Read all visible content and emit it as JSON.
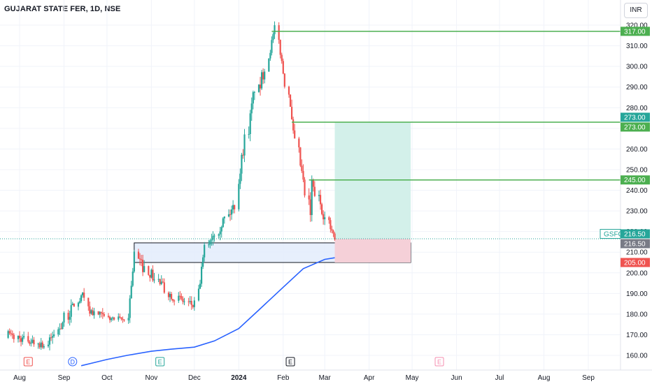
{
  "header": {
    "title": "GUJARAT STATE FER, 1D, NSE",
    "currency": "INR"
  },
  "chart_data": {
    "type": "candlestick",
    "symbol": "GSFC",
    "price_axis": {
      "ylim": [
        153,
        324
      ],
      "ticks": [
        160,
        170,
        180,
        190,
        200,
        210,
        220,
        230,
        240,
        250,
        260,
        270,
        280,
        290,
        300,
        310,
        320
      ],
      "tick_labels": [
        "160.00",
        "170.00",
        "180.00",
        "190.00",
        "200.00",
        "210.00",
        "220.00",
        "230.00",
        "240.00",
        "250.00",
        "260.00",
        "270.00",
        "280.00",
        "290.00",
        "300.00",
        "310.00",
        "320.00"
      ]
    },
    "time_axis": {
      "labels": [
        {
          "text": "Aug",
          "date": "2023-08-01",
          "bold": false
        },
        {
          "text": "Sep",
          "date": "2023-09-01",
          "bold": false
        },
        {
          "text": "Oct",
          "date": "2023-10-01",
          "bold": false
        },
        {
          "text": "Nov",
          "date": "2023-11-01",
          "bold": false
        },
        {
          "text": "Dec",
          "date": "2023-12-01",
          "bold": false
        },
        {
          "text": "2024",
          "date": "2024-01-01",
          "bold": true
        },
        {
          "text": "Feb",
          "date": "2024-02-01",
          "bold": false
        },
        {
          "text": "Mar",
          "date": "2024-03-01",
          "bold": false
        },
        {
          "text": "Apr",
          "date": "2024-04-01",
          "bold": false
        },
        {
          "text": "May",
          "date": "2024-05-01",
          "bold": false
        },
        {
          "text": "Jun",
          "date": "2024-06-01",
          "bold": false
        },
        {
          "text": "Jul",
          "date": "2024-07-01",
          "bold": false
        },
        {
          "text": "Aug",
          "date": "2024-08-01",
          "bold": false
        },
        {
          "text": "Sep",
          "date": "2024-09-01",
          "bold": false
        }
      ]
    },
    "colors": {
      "up": "#26a69a",
      "down": "#ef5350",
      "ma": "#2962ff",
      "level": "#4caf50",
      "zone_fill": "#e3ecfb",
      "target_fill": "#d3f0ea",
      "stop_fill": "#f5d0d8",
      "stop_label": "#ef5350",
      "last_price": "#26a69a",
      "crosshair_label": "#787b86"
    },
    "candles_segments": [
      {
        "from": "2023-07-24",
        "to": "2023-08-18",
        "start": 170,
        "end": 165,
        "wiggle": 3
      },
      {
        "from": "2023-08-19",
        "to": "2023-09-10",
        "start": 165,
        "end": 185,
        "wiggle": 4
      },
      {
        "from": "2023-09-11",
        "to": "2023-09-16",
        "start": 185,
        "end": 190,
        "wiggle": 3
      },
      {
        "from": "2023-09-17",
        "to": "2023-09-30",
        "start": 182,
        "end": 178,
        "wiggle": 3
      },
      {
        "from": "2023-10-01",
        "to": "2023-10-14",
        "start": 178,
        "end": 177,
        "wiggle": 2
      },
      {
        "from": "2023-10-15",
        "to": "2023-10-22",
        "start": 180,
        "end": 209,
        "wiggle": 4
      },
      {
        "from": "2023-10-23",
        "to": "2023-11-10",
        "start": 206,
        "end": 192,
        "wiggle": 4
      },
      {
        "from": "2023-11-11",
        "to": "2023-11-30",
        "start": 190,
        "end": 184,
        "wiggle": 3
      },
      {
        "from": "2023-12-01",
        "to": "2023-12-10",
        "start": 185,
        "end": 212,
        "wiggle": 3
      },
      {
        "from": "2023-12-11",
        "to": "2023-12-31",
        "start": 215,
        "end": 233,
        "wiggle": 4
      },
      {
        "from": "2024-01-01",
        "to": "2024-01-12",
        "start": 245,
        "end": 290,
        "wiggle": 5
      },
      {
        "from": "2024-01-13",
        "to": "2024-01-21",
        "start": 288,
        "end": 300,
        "wiggle": 5
      },
      {
        "from": "2024-01-22",
        "to": "2024-01-26",
        "start": 305,
        "end": 318,
        "wiggle": 3
      },
      {
        "from": "2024-01-27",
        "to": "2024-02-06",
        "start": 312,
        "end": 282,
        "wiggle": 3
      },
      {
        "from": "2024-02-07",
        "to": "2024-02-20",
        "start": 272,
        "end": 228,
        "wiggle": 5
      },
      {
        "from": "2024-02-21",
        "to": "2024-03-06",
        "start": 243,
        "end": 219,
        "wiggle": 4
      },
      {
        "from": "2024-03-07",
        "to": "2024-03-09",
        "start": 219,
        "end": 215,
        "wiggle": 3
      }
    ],
    "moving_average": {
      "points": [
        {
          "date": "2023-09-13",
          "value": 155
        },
        {
          "date": "2023-10-01",
          "value": 158
        },
        {
          "date": "2023-10-15",
          "value": 160
        },
        {
          "date": "2023-11-01",
          "value": 162
        },
        {
          "date": "2023-11-15",
          "value": 163
        },
        {
          "date": "2023-12-01",
          "value": 164
        },
        {
          "date": "2023-12-15",
          "value": 167
        },
        {
          "date": "2024-01-01",
          "value": 173
        },
        {
          "date": "2024-01-15",
          "value": 182
        },
        {
          "date": "2024-02-01",
          "value": 193
        },
        {
          "date": "2024-02-15",
          "value": 202
        },
        {
          "date": "2024-03-01",
          "value": 206.5
        },
        {
          "date": "2024-03-08",
          "value": 207.3
        }
      ]
    },
    "horizontal_levels": [
      {
        "price": 317,
        "from": "2024-01-24",
        "label": "317.00"
      },
      {
        "price": 273,
        "from": "2024-02-07",
        "label": "273.00"
      },
      {
        "price": 245,
        "from": "2024-02-19",
        "label": "245.00"
      }
    ],
    "demand_zone": {
      "from": "2023-10-20",
      "to": "2024-04-30",
      "top": 214.5,
      "bottom": 205
    },
    "long_position": {
      "from": "2024-03-08",
      "to": "2024-04-30",
      "entry": 216.5,
      "target": 273,
      "stop": 205
    },
    "price_labels": [
      {
        "price": 273,
        "text": "273.00",
        "kind": "target-top",
        "offset": -1
      },
      {
        "price": 273,
        "text": "273.00",
        "kind": "level",
        "offset": 1
      },
      {
        "price": 317,
        "text": "317.00",
        "kind": "level",
        "offset": 0
      },
      {
        "price": 245,
        "text": "245.00",
        "kind": "level",
        "offset": 0
      },
      {
        "price": 216.5,
        "text": "216.50",
        "kind": "last",
        "offset": -1,
        "symbol": "GSFC"
      },
      {
        "price": 216.5,
        "text": "216.50",
        "kind": "crosshair",
        "offset": 1
      },
      {
        "price": 205,
        "text": "205.00",
        "kind": "stop",
        "offset": 0
      }
    ],
    "event_markers": [
      {
        "date": "2023-08-07",
        "letter": "E",
        "color": "#ef5350"
      },
      {
        "date": "2023-09-07",
        "letter": "D",
        "color": "#2962ff"
      },
      {
        "date": "2023-11-07",
        "letter": "E",
        "color": "#26a69a"
      },
      {
        "date": "2024-02-06",
        "letter": "E",
        "color": "#131722"
      },
      {
        "date": "2024-05-20",
        "letter": "E",
        "color": "#f48fb1"
      }
    ]
  }
}
